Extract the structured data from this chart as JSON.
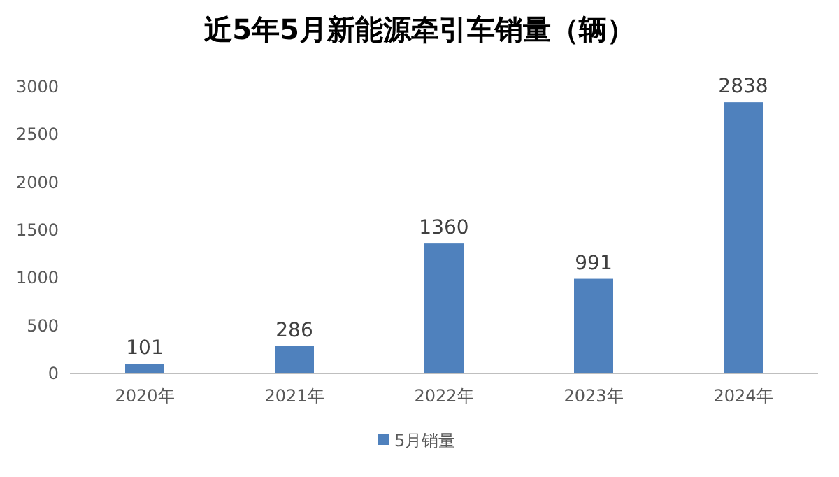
{
  "chart_data": {
    "type": "bar",
    "title": "近5年5月新能源牵引车销量（辆）",
    "categories": [
      "2020年",
      "2021年",
      "2022年",
      "2023年",
      "2024年"
    ],
    "series": [
      {
        "name": "5月销量",
        "color": "#4f81bd",
        "values": [
          101,
          286,
          1360,
          991,
          2838
        ]
      }
    ],
    "ylim": [
      0,
      3000
    ],
    "yticks": [
      0,
      500,
      1000,
      1500,
      2000,
      2500,
      3000
    ],
    "data_labels": true,
    "legend": "bottom",
    "grid": false
  }
}
